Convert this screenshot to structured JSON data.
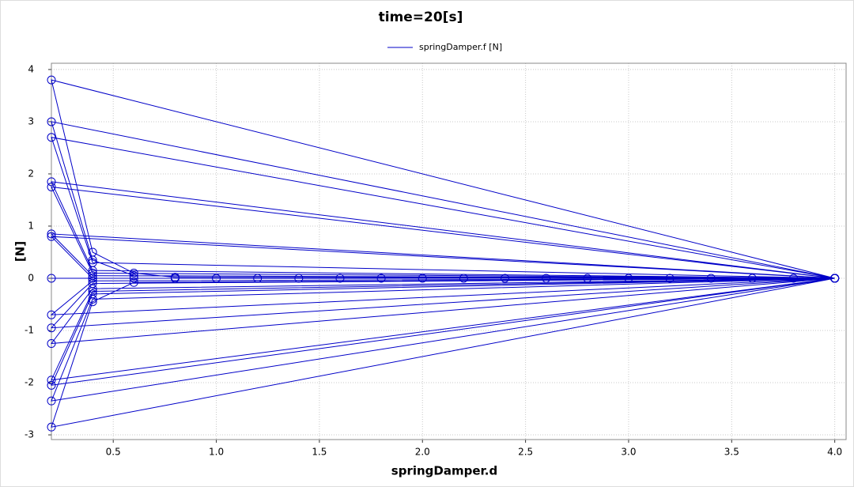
{
  "chart_data": {
    "type": "line",
    "title": "time=20[s]",
    "xlabel": "springDamper.d",
    "ylabel": "[N]",
    "legend": "top",
    "grid": true,
    "xlim": [
      0.2,
      4.055
    ],
    "ylim": [
      -3.09,
      4.12
    ],
    "xticks": [
      0.5,
      {
        "value": 1.0,
        "label": "1.0"
      },
      1.5,
      {
        "value": 2.0,
        "label": "2.0"
      },
      2.5,
      {
        "value": 3.0,
        "label": "3.0"
      },
      3.5,
      {
        "value": 4.0,
        "label": "4.0"
      }
    ],
    "yticks": [
      -3,
      -2,
      -1,
      0,
      1,
      2,
      3,
      4
    ],
    "series": [
      {
        "name": "springDamper.f [N]",
        "color": "#0000c8",
        "marker": "circle",
        "x": [
          0.2,
          0.4,
          0.6,
          0.8,
          1.0,
          1.2,
          1.4,
          1.6,
          1.8,
          2.0,
          2.2,
          2.4,
          2.6,
          2.8,
          3.0,
          3.2,
          3.4,
          3.6,
          3.8,
          4.0,
          0.2,
          0.4,
          0.6,
          0.8,
          4.0,
          0.2,
          0.4,
          0.6,
          4.0,
          0.2,
          0.4,
          0.6,
          4.0,
          0.2,
          0.4,
          4.0,
          0.2,
          0.4,
          4.0,
          0.2,
          0.4,
          4.0,
          0.2,
          0.4,
          4.0,
          0.2,
          0.4,
          4.0,
          0.2,
          0.4,
          4.0,
          0.2,
          0.4,
          4.0,
          0.2,
          0.4,
          4.0,
          0.2,
          0.4,
          4.0,
          0.2,
          0.4,
          4.0,
          0.2,
          0.4,
          4.0
        ],
        "values": [
          0,
          0,
          0,
          0,
          0,
          0,
          0,
          0,
          0,
          0,
          0,
          0,
          0,
          0,
          0,
          0,
          0,
          0,
          0,
          0,
          3.8,
          0.5,
          0.1,
          0.02,
          0,
          -2.85,
          -0.45,
          -0.08,
          0,
          3.0,
          0.35,
          0.05,
          0,
          -2.35,
          -0.4,
          0,
          2.7,
          0.3,
          0,
          -2.05,
          -0.3,
          0,
          1.85,
          0.15,
          0,
          -1.95,
          -0.25,
          0,
          1.75,
          0.1,
          0,
          -1.25,
          -0.2,
          0,
          0.85,
          0.05,
          0,
          -0.95,
          -0.1,
          0,
          0.8,
          0,
          0,
          -0.7,
          -0.05,
          0
        ]
      }
    ]
  }
}
